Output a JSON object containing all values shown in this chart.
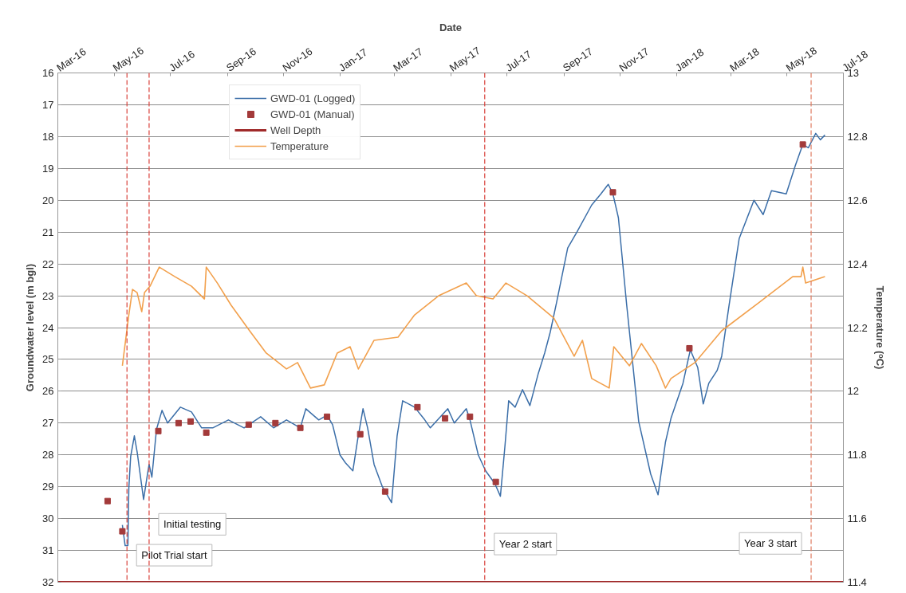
{
  "chart_data": {
    "type": "line",
    "xlabel": "Date",
    "ylabel": "Groundwater level (m bgl)",
    "y2label": "Temperature (ᵒC)",
    "xlim": [
      "2016-03-01",
      "2018-07-01"
    ],
    "xticks": [
      {
        "value": "2016-03-01",
        "label": "Mar-16"
      },
      {
        "value": "2016-05-01",
        "label": "May-16"
      },
      {
        "value": "2016-07-01",
        "label": "Jul-16"
      },
      {
        "value": "2016-09-01",
        "label": "Sep-16"
      },
      {
        "value": "2016-11-01",
        "label": "Nov-16"
      },
      {
        "value": "2017-01-01",
        "label": "Jan-17"
      },
      {
        "value": "2017-03-01",
        "label": "Mar-17"
      },
      {
        "value": "2017-05-01",
        "label": "May-17"
      },
      {
        "value": "2017-07-01",
        "label": "Jul-17"
      },
      {
        "value": "2017-09-01",
        "label": "Sep-17"
      },
      {
        "value": "2017-11-01",
        "label": "Nov-17"
      },
      {
        "value": "2018-01-01",
        "label": "Jan-18"
      },
      {
        "value": "2018-03-01",
        "label": "Mar-18"
      },
      {
        "value": "2018-05-01",
        "label": "May-18"
      },
      {
        "value": "2018-07-01",
        "label": "Jul-18"
      }
    ],
    "ylim": [
      32,
      16
    ],
    "yticks": [
      16,
      17,
      18,
      19,
      20,
      21,
      22,
      23,
      24,
      25,
      26,
      27,
      28,
      29,
      30,
      31,
      32
    ],
    "y2lim": [
      11.4,
      13
    ],
    "y2ticks": [
      11.4,
      11.6,
      11.8,
      12,
      12.2,
      12.4,
      12.6,
      12.8,
      13
    ],
    "grid": "y",
    "legend": "top left",
    "series": [
      {
        "name": "GWD-01 (Logged)",
        "color": "#3b6ea8",
        "x": [
          "2016-05-10",
          "2016-05-13",
          "2016-05-16",
          "2016-05-17",
          "2016-05-19",
          "2016-05-23",
          "2016-05-26",
          "2016-06-02",
          "2016-06-06",
          "2016-06-08",
          "2016-06-11",
          "2016-06-16",
          "2016-06-22",
          "2016-06-28",
          "2016-07-12",
          "2016-07-24",
          "2016-08-04",
          "2016-08-16",
          "2016-09-02",
          "2016-09-19",
          "2016-10-07",
          "2016-10-21",
          "2016-11-04",
          "2016-11-19",
          "2016-11-25",
          "2016-12-09",
          "2016-12-18",
          "2016-12-24",
          "2017-01-01",
          "2017-01-07",
          "2017-01-15",
          "2017-01-20",
          "2017-01-26",
          "2017-01-31",
          "2017-02-07",
          "2017-02-16",
          "2017-02-26",
          "2017-03-04",
          "2017-03-10",
          "2017-03-23",
          "2017-04-03",
          "2017-04-09",
          "2017-04-28",
          "2017-05-05",
          "2017-05-18",
          "2017-05-22",
          "2017-05-31",
          "2017-06-08",
          "2017-06-18",
          "2017-06-24",
          "2017-06-29",
          "2017-07-03",
          "2017-07-10",
          "2017-07-18",
          "2017-07-26",
          "2017-08-04",
          "2017-08-11",
          "2017-08-17",
          "2017-08-24",
          "2017-09-05",
          "2017-09-15",
          "2017-10-01",
          "2017-10-11",
          "2017-10-19",
          "2017-10-24",
          "2017-10-30",
          "2017-11-08",
          "2017-11-21",
          "2017-12-04",
          "2017-12-12",
          "2017-12-20",
          "2017-12-26",
          "2018-01-08",
          "2018-01-16",
          "2018-01-24",
          "2018-01-30",
          "2018-02-05",
          "2018-02-14",
          "2018-02-19",
          "2018-02-27",
          "2018-03-10",
          "2018-03-26",
          "2018-04-05",
          "2018-04-14",
          "2018-04-30",
          "2018-05-10",
          "2018-05-18",
          "2018-05-24",
          "2018-06-01",
          "2018-06-06",
          "2018-06-11"
        ],
        "values": [
          30.2,
          30.85,
          30.85,
          29.05,
          28.05,
          27.4,
          27.9,
          29.4,
          28.65,
          28.3,
          28.7,
          27.2,
          26.6,
          27.0,
          26.5,
          26.65,
          27.15,
          27.15,
          26.9,
          27.15,
          26.8,
          27.15,
          26.9,
          27.15,
          26.55,
          26.9,
          26.75,
          27.05,
          28.0,
          28.25,
          28.5,
          27.55,
          26.55,
          27.15,
          28.3,
          29.0,
          29.5,
          27.4,
          26.3,
          26.5,
          26.9,
          27.15,
          26.55,
          27.0,
          26.55,
          26.9,
          28.0,
          28.5,
          28.9,
          29.3,
          27.7,
          26.3,
          26.5,
          25.95,
          26.45,
          25.45,
          24.8,
          24.15,
          23.2,
          21.5,
          21.0,
          20.15,
          19.8,
          19.5,
          19.8,
          20.55,
          23.3,
          26.95,
          28.6,
          29.25,
          27.6,
          26.85,
          25.75,
          24.7,
          25.25,
          26.4,
          25.75,
          25.35,
          24.9,
          23.3,
          21.2,
          20.0,
          20.45,
          19.7,
          19.8,
          18.9,
          18.25,
          18.35,
          17.9,
          18.1,
          17.95
        ]
      },
      {
        "name": "GWD-01 (Manual)",
        "type": "scatter",
        "marker": "square",
        "color": "#a33a3a",
        "x": [
          "2016-04-24",
          "2016-05-10",
          "2016-06-18",
          "2016-07-10",
          "2016-07-23",
          "2016-08-09",
          "2016-09-24",
          "2016-10-23",
          "2016-11-19",
          "2016-12-18",
          "2017-01-23",
          "2017-02-19",
          "2017-03-26",
          "2017-04-25",
          "2017-05-22",
          "2017-06-19",
          "2017-10-24",
          "2018-01-15",
          "2018-05-18"
        ],
        "values": [
          29.45,
          30.4,
          27.25,
          27.0,
          26.95,
          27.3,
          27.05,
          27.0,
          27.15,
          26.8,
          27.35,
          29.15,
          26.5,
          26.85,
          26.8,
          28.85,
          19.75,
          24.65,
          18.25
        ]
      },
      {
        "name": "Well Depth",
        "color": "#a02a2a",
        "x": [
          "2016-03-01",
          "2018-07-01"
        ],
        "values": [
          32,
          32
        ]
      },
      {
        "name": "Temperature",
        "type": "line",
        "axis": "y2",
        "color": "#f2a04c",
        "x": [
          "2016-05-10",
          "2016-05-17",
          "2016-05-21",
          "2016-05-26",
          "2016-05-31",
          "2016-06-03",
          "2016-06-09",
          "2016-06-19",
          "2016-07-06",
          "2016-07-24",
          "2016-08-07",
          "2016-08-09",
          "2016-08-21",
          "2016-09-05",
          "2016-09-25",
          "2016-10-13",
          "2016-11-04",
          "2016-11-16",
          "2016-11-30",
          "2016-12-15",
          "2016-12-29",
          "2017-01-12",
          "2017-01-21",
          "2017-02-07",
          "2017-03-05",
          "2017-03-23",
          "2017-04-18",
          "2017-05-18",
          "2017-05-29",
          "2017-06-16",
          "2017-06-30",
          "2017-07-23",
          "2017-08-21",
          "2017-09-12",
          "2017-09-21",
          "2017-10-01",
          "2017-10-20",
          "2017-10-25",
          "2017-11-11",
          "2017-11-24",
          "2017-12-10",
          "2017-12-20",
          "2017-12-26",
          "2018-01-21",
          "2018-02-19",
          "2018-04-01",
          "2018-05-07",
          "2018-05-16",
          "2018-05-18",
          "2018-05-21",
          "2018-06-11"
        ],
        "values": [
          12.08,
          12.24,
          12.32,
          12.31,
          12.25,
          12.31,
          12.33,
          12.39,
          12.36,
          12.33,
          12.29,
          12.39,
          12.34,
          12.27,
          12.19,
          12.12,
          12.07,
          12.09,
          12.01,
          12.02,
          12.12,
          12.14,
          12.07,
          12.16,
          12.17,
          12.24,
          12.3,
          12.34,
          12.3,
          12.29,
          12.34,
          12.3,
          12.23,
          12.11,
          12.16,
          12.04,
          12.01,
          12.14,
          12.08,
          12.15,
          12.08,
          12.01,
          12.04,
          12.09,
          12.19,
          12.28,
          12.36,
          12.36,
          12.39,
          12.34,
          12.36
        ]
      }
    ],
    "ref_lines": [
      {
        "axis": "x",
        "value": "2016-05-15",
        "label": "Pilot Trial start",
        "color": "#d9403a",
        "line_style": "dashed"
      },
      {
        "axis": "x",
        "value": "2016-06-08",
        "label": "Initial testing",
        "color": "#d9403a",
        "line_style": "dashed"
      },
      {
        "axis": "x",
        "value": "2017-06-07",
        "label": "Year 2 start",
        "color": "#d9403a",
        "line_style": "dashed"
      },
      {
        "axis": "x",
        "value": "2018-05-27",
        "label": "Year 3 start",
        "color": "#e07a60",
        "line_style": "dashed"
      }
    ]
  }
}
